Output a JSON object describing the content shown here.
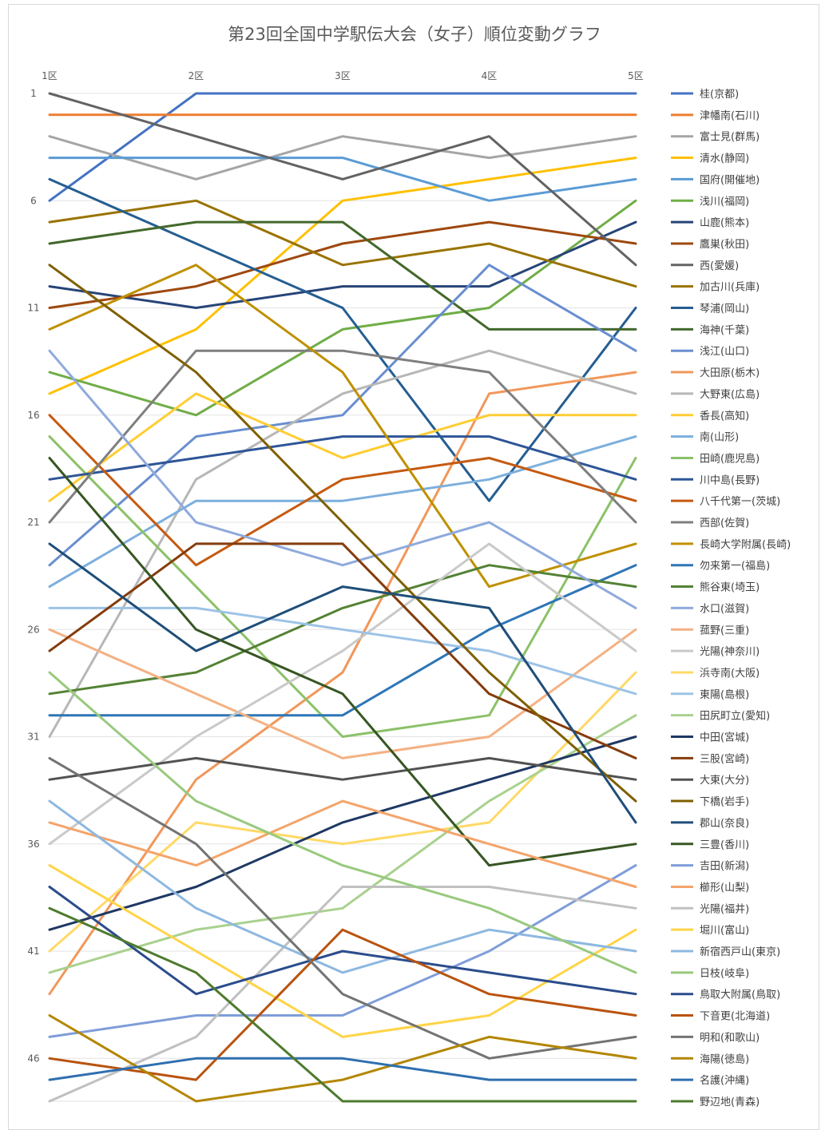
{
  "chart_data": {
    "type": "line",
    "title": "第23回全国中学駅伝大会（女子）順位変動グラフ",
    "x": [
      "1区",
      "2区",
      "3区",
      "4区",
      "5区"
    ],
    "y_ticks": [
      1,
      6,
      11,
      16,
      21,
      26,
      31,
      36,
      41,
      46
    ],
    "ylim": [
      1,
      48
    ],
    "y_inverted": true,
    "grid": true,
    "legend_position": "right",
    "series": [
      {
        "name": "桂(京都)",
        "color": "#4472C4",
        "values": [
          6,
          1,
          1,
          1,
          1
        ]
      },
      {
        "name": "津幡南(石川)",
        "color": "#ED7D31",
        "values": [
          2,
          2,
          2,
          2,
          2
        ]
      },
      {
        "name": "富士見(群馬)",
        "color": "#A5A5A5",
        "values": [
          3,
          5,
          3,
          4,
          3
        ]
      },
      {
        "name": "清水(静岡)",
        "color": "#FFC000",
        "values": [
          15,
          12,
          6,
          5,
          4
        ]
      },
      {
        "name": "国府(開催地)",
        "color": "#5B9BD5",
        "values": [
          4,
          4,
          4,
          6,
          5
        ]
      },
      {
        "name": "浅川(福岡)",
        "color": "#70AD47",
        "values": [
          14,
          16,
          12,
          11,
          6
        ]
      },
      {
        "name": "山鹿(熊本)",
        "color": "#264478",
        "values": [
          10,
          11,
          10,
          10,
          7
        ]
      },
      {
        "name": "鷹巣(秋田)",
        "color": "#9E480E",
        "values": [
          11,
          10,
          8,
          7,
          8
        ]
      },
      {
        "name": "西(愛媛)",
        "color": "#636363",
        "values": [
          1,
          3,
          5,
          3,
          9
        ]
      },
      {
        "name": "加古川(兵庫)",
        "color": "#997300",
        "values": [
          7,
          6,
          9,
          8,
          10
        ]
      },
      {
        "name": "琴浦(岡山)",
        "color": "#255E91",
        "values": [
          5,
          8,
          11,
          20,
          11
        ]
      },
      {
        "name": "海神(千葉)",
        "color": "#43682B",
        "values": [
          8,
          7,
          7,
          12,
          12
        ]
      },
      {
        "name": "浅江(山口)",
        "color": "#698ED0",
        "values": [
          23,
          17,
          16,
          9,
          13
        ]
      },
      {
        "name": "大田原(栃木)",
        "color": "#F1975A",
        "values": [
          43,
          33,
          28,
          15,
          14
        ]
      },
      {
        "name": "大野東(広島)",
        "color": "#B7B7B7",
        "values": [
          31,
          19,
          15,
          13,
          15
        ]
      },
      {
        "name": "香長(高知)",
        "color": "#FFCD33",
        "values": [
          20,
          15,
          18,
          16,
          16
        ]
      },
      {
        "name": "南(山形)",
        "color": "#7CAFDD",
        "values": [
          24,
          20,
          20,
          19,
          17
        ]
      },
      {
        "name": "田崎(鹿児島)",
        "color": "#8CC168",
        "values": [
          17,
          24,
          31,
          30,
          18
        ]
      },
      {
        "name": "川中島(長野)",
        "color": "#2F5597",
        "values": [
          19,
          18,
          17,
          17,
          19
        ]
      },
      {
        "name": "八千代第一(茨城)",
        "color": "#C55A11",
        "values": [
          16,
          23,
          19,
          18,
          20
        ]
      },
      {
        "name": "西部(佐賀)",
        "color": "#7F7F7F",
        "values": [
          21,
          13,
          13,
          14,
          21
        ]
      },
      {
        "name": "長崎大学附属(長崎)",
        "color": "#BF9000",
        "values": [
          12,
          9,
          14,
          24,
          22
        ]
      },
      {
        "name": "勿来第一(福島)",
        "color": "#2E75B6",
        "values": [
          30,
          30,
          30,
          26,
          23
        ]
      },
      {
        "name": "熊谷東(埼玉)",
        "color": "#548235",
        "values": [
          29,
          28,
          25,
          23,
          24
        ]
      },
      {
        "name": "水口(滋賀)",
        "color": "#8FAADC",
        "values": [
          13,
          21,
          23,
          21,
          25
        ]
      },
      {
        "name": "菰野(三重)",
        "color": "#F4B183",
        "values": [
          26,
          29,
          32,
          31,
          26
        ]
      },
      {
        "name": "光陽(神奈川)",
        "color": "#C9C9C9",
        "values": [
          36,
          31,
          27,
          22,
          27
        ]
      },
      {
        "name": "浜寺南(大阪)",
        "color": "#FFD966",
        "values": [
          41,
          35,
          36,
          35,
          28
        ]
      },
      {
        "name": "東陽(島根)",
        "color": "#9DC3E6",
        "values": [
          25,
          25,
          26,
          27,
          29
        ]
      },
      {
        "name": "田尻町立(愛知)",
        "color": "#A9D18E",
        "values": [
          42,
          40,
          39,
          34,
          30
        ]
      },
      {
        "name": "中田(宮城)",
        "color": "#1F3864",
        "values": [
          40,
          38,
          35,
          33,
          31
        ]
      },
      {
        "name": "三股(宮崎)",
        "color": "#843C0C",
        "values": [
          27,
          22,
          22,
          29,
          32
        ]
      },
      {
        "name": "大東(大分)",
        "color": "#525252",
        "values": [
          33,
          32,
          33,
          32,
          33
        ]
      },
      {
        "name": "下橋(岩手)",
        "color": "#7F6000",
        "values": [
          9,
          14,
          21,
          28,
          34
        ]
      },
      {
        "name": "郡山(奈良)",
        "color": "#1F4E79",
        "values": [
          22,
          27,
          24,
          25,
          35
        ]
      },
      {
        "name": "三豊(香川)",
        "color": "#375623",
        "values": [
          18,
          26,
          29,
          37,
          36
        ]
      },
      {
        "name": "吉田(新潟)",
        "color": "#7F9DD9",
        "values": [
          45,
          44,
          44,
          41,
          37
        ]
      },
      {
        "name": "櫛形(山梨)",
        "color": "#F4A46A",
        "values": [
          35,
          37,
          34,
          36,
          38
        ]
      },
      {
        "name": "光陽(福井)",
        "color": "#C0C0C0",
        "values": [
          48,
          45,
          38,
          38,
          39
        ]
      },
      {
        "name": "堀川(富山)",
        "color": "#FFD447",
        "values": [
          37,
          41,
          45,
          44,
          40
        ]
      },
      {
        "name": "新宿西戸山(東京)",
        "color": "#8DB8E0",
        "values": [
          34,
          39,
          42,
          40,
          41
        ]
      },
      {
        "name": "日枝(岐阜)",
        "color": "#98C97E",
        "values": [
          28,
          34,
          37,
          39,
          42
        ]
      },
      {
        "name": "鳥取大附属(鳥取)",
        "color": "#2B4C8C",
        "values": [
          38,
          43,
          41,
          42,
          43
        ]
      },
      {
        "name": "下音更(北海道)",
        "color": "#B9530F",
        "values": [
          46,
          47,
          40,
          43,
          44
        ]
      },
      {
        "name": "明和(和歌山)",
        "color": "#737373",
        "values": [
          32,
          36,
          43,
          46,
          45
        ]
      },
      {
        "name": "海陽(徳島)",
        "color": "#B38600",
        "values": [
          44,
          48,
          47,
          45,
          46
        ]
      },
      {
        "name": "名護(沖縄)",
        "color": "#2F6FAF",
        "values": [
          47,
          46,
          46,
          47,
          47
        ]
      },
      {
        "name": "野辺地(青森)",
        "color": "#4E7A2E",
        "values": [
          39,
          42,
          48,
          48,
          48
        ]
      }
    ]
  }
}
